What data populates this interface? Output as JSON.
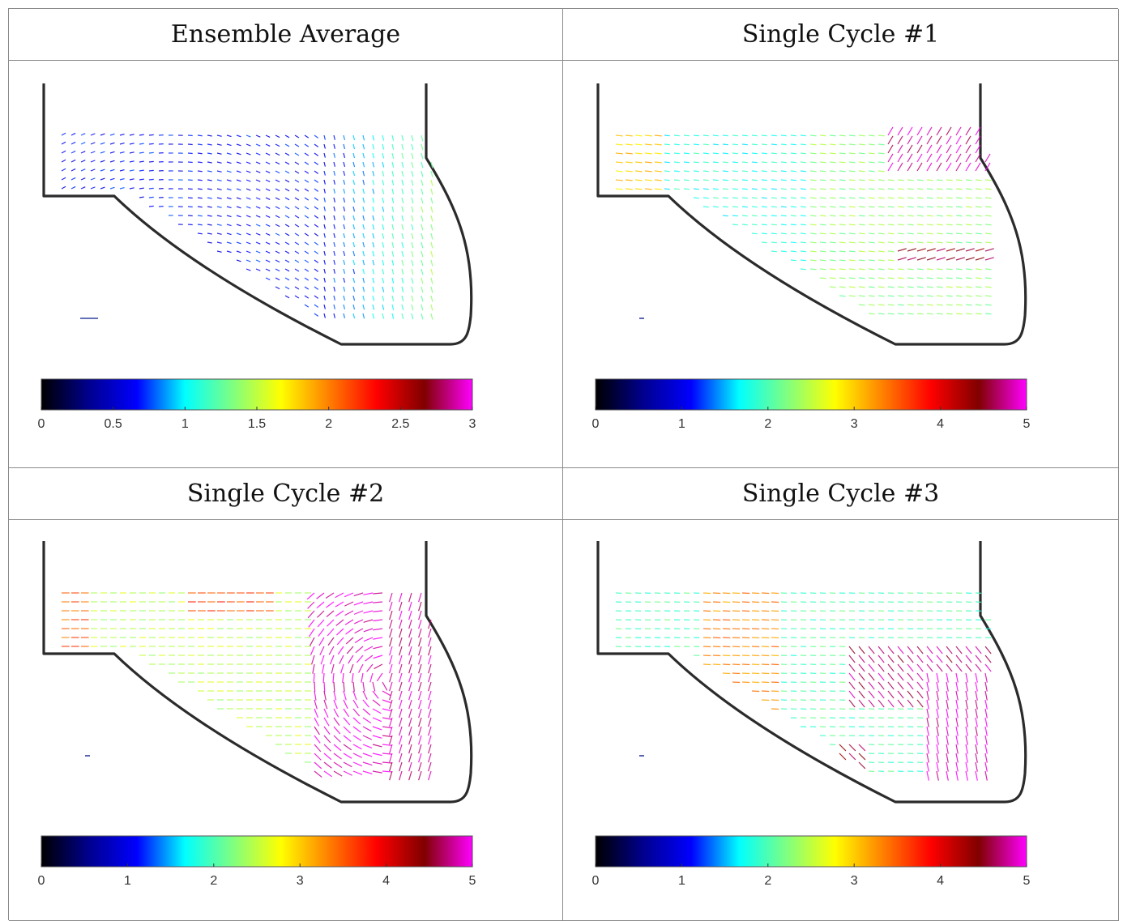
{
  "panels": [
    {
      "title": "Ensemble Average",
      "vmax": 3,
      "ticks": [
        "0",
        "0.5",
        "1",
        "1.5",
        "2",
        "2.5",
        "3"
      ],
      "tick_values": [
        0,
        0.5,
        1,
        1.5,
        2,
        2.5,
        3
      ],
      "pattern": "ensemble"
    },
    {
      "title": "Single Cycle #1",
      "vmax": 5,
      "ticks": [
        "0",
        "1",
        "2",
        "3",
        "4",
        "5"
      ],
      "tick_values": [
        0,
        1,
        2,
        3,
        4,
        5
      ],
      "pattern": "cycle1"
    },
    {
      "title": "Single Cycle #2",
      "vmax": 5,
      "ticks": [
        "0",
        "1",
        "2",
        "3",
        "4",
        "5"
      ],
      "tick_values": [
        0,
        1,
        2,
        3,
        4,
        5
      ],
      "pattern": "cycle2"
    },
    {
      "title": "Single Cycle #3",
      "vmax": 5,
      "ticks": [
        "0",
        "1",
        "2",
        "3",
        "4",
        "5"
      ],
      "tick_values": [
        0,
        1,
        2,
        3,
        4,
        5
      ],
      "pattern": "cycle3"
    }
  ],
  "colormap": [
    "#000000",
    "#00008f",
    "#0000ff",
    "#00ffff",
    "#80ff80",
    "#ffff00",
    "#ff8000",
    "#ff0000",
    "#800000",
    "#ff00ff"
  ]
}
